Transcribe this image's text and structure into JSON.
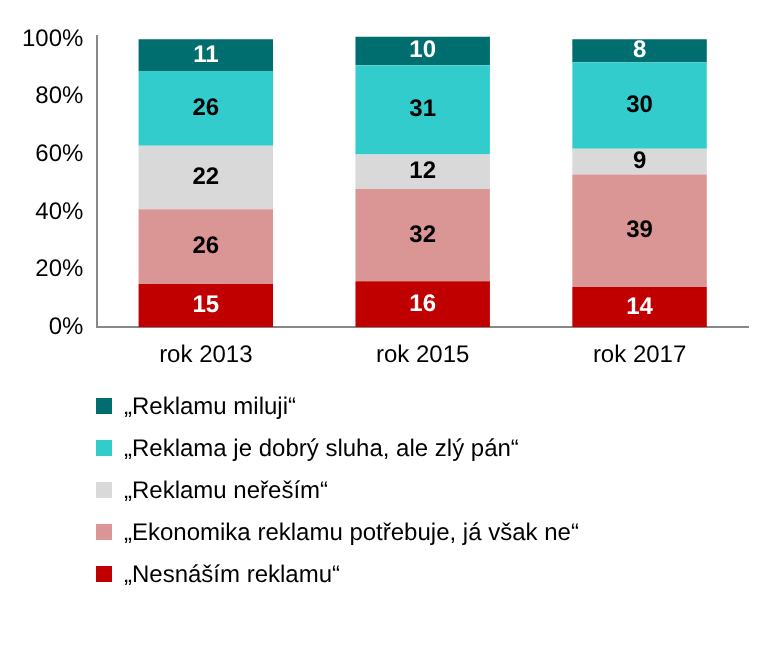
{
  "chart_data": {
    "type": "bar",
    "stacked": true,
    "categories": [
      "rok 2013",
      "rok 2015",
      "rok 2017"
    ],
    "series": [
      {
        "name": "„Nesnáším reklamu“",
        "color": "#c00000",
        "values": [
          15,
          16,
          14
        ]
      },
      {
        "name": "„Ekonomika reklamu potřebuje, já však ne“",
        "color": "#d99694",
        "values": [
          26,
          32,
          39
        ]
      },
      {
        "name": "„Reklamu neřeším“",
        "color": "#d9d9d9",
        "values": [
          22,
          12,
          9
        ]
      },
      {
        "name": "„Reklama je dobrý sluha, ale zlý pán“",
        "color": "#33cccc",
        "values": [
          26,
          31,
          30
        ]
      },
      {
        "name": "„Reklamu miluji“",
        "color": "#006e6e",
        "values": [
          11,
          10,
          8
        ]
      }
    ],
    "ylim": [
      0,
      101
    ],
    "yticks": [
      {
        "value": 0,
        "label": "0%"
      },
      {
        "value": 20,
        "label": "20%"
      },
      {
        "value": 40,
        "label": "40%"
      },
      {
        "value": 60,
        "label": "60%"
      },
      {
        "value": 80,
        "label": "80%"
      },
      {
        "value": 100,
        "label": "100%"
      }
    ],
    "data_labels": true,
    "legend": "bottom",
    "grid": false
  }
}
